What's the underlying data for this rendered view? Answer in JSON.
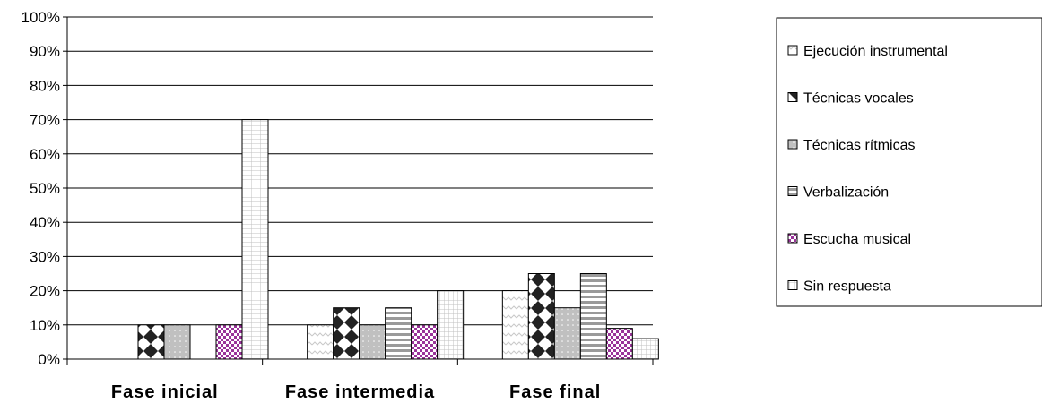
{
  "chart_data": {
    "type": "bar",
    "title": "",
    "xlabel": "",
    "ylabel": "",
    "categories": [
      "Fase inicial",
      "Fase intermedia",
      "Fase final"
    ],
    "y_ticks": [
      "0%",
      "10%",
      "20%",
      "30%",
      "40%",
      "50%",
      "60%",
      "70%",
      "80%",
      "90%",
      "100%"
    ],
    "ylim": [
      0,
      100
    ],
    "grid": true,
    "legend_position": "right",
    "series": [
      {
        "name": "Ejecución instrumental",
        "values": [
          0,
          10,
          20
        ],
        "pattern": "wave",
        "color": "#ffffff"
      },
      {
        "name": "Técnicas vocales",
        "values": [
          10,
          15,
          25
        ],
        "pattern": "diamond",
        "color": "#333333"
      },
      {
        "name": "Técnicas rítmicas",
        "values": [
          10,
          10,
          15
        ],
        "pattern": "dots",
        "color": "#c0c0c0"
      },
      {
        "name": "Verbalización",
        "values": [
          0,
          15,
          25
        ],
        "pattern": "hstripes",
        "color": "#9a9a9a"
      },
      {
        "name": "Escucha musical",
        "values": [
          10,
          10,
          9
        ],
        "pattern": "checker",
        "color": "#993399"
      },
      {
        "name": "Sin respuesta",
        "values": [
          70,
          20,
          6
        ],
        "pattern": "grid",
        "color": "#c8c8c8"
      }
    ]
  }
}
